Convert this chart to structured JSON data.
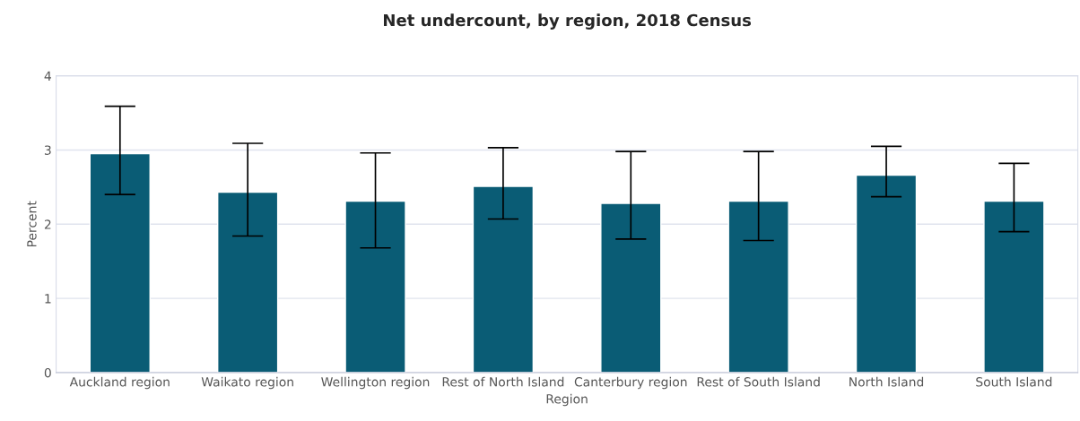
{
  "chart_data": {
    "type": "bar",
    "title": "Net undercount, by region, 2018 Census",
    "xlabel": "Region",
    "ylabel": "Percent",
    "categories": [
      "Auckland region",
      "Waikato region",
      "Wellington region",
      "Rest of North Island",
      "Canterbury region",
      "Rest of South Island",
      "North Island",
      "South Island"
    ],
    "values": [
      2.95,
      2.43,
      2.31,
      2.51,
      2.28,
      2.31,
      2.66,
      2.31
    ],
    "errors": [
      [
        2.4,
        3.59
      ],
      [
        1.84,
        3.09
      ],
      [
        1.68,
        2.96
      ],
      [
        2.07,
        3.03
      ],
      [
        1.8,
        2.98
      ],
      [
        1.78,
        2.98
      ],
      [
        2.37,
        3.05
      ],
      [
        1.9,
        2.82
      ]
    ],
    "color": "#0a5c75",
    "ylim": [
      0,
      4
    ],
    "yticks": [
      0,
      1,
      2,
      3,
      4
    ],
    "grid": "y"
  }
}
